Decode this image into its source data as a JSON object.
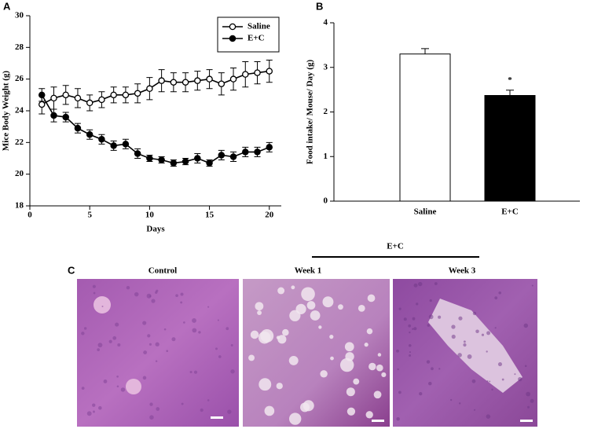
{
  "panel_labels": [
    "A",
    "B",
    "C"
  ],
  "chart_data": [
    {
      "type": "line",
      "x_label": "Days",
      "y_label": "Mice Body Weight (g)",
      "x": [
        1,
        2,
        3,
        4,
        5,
        6,
        7,
        8,
        9,
        10,
        11,
        12,
        13,
        14,
        15,
        16,
        17,
        18,
        19,
        20
      ],
      "xlim": [
        0,
        21
      ],
      "xticks": [
        0,
        5,
        10,
        15,
        20
      ],
      "ylim": [
        18,
        30
      ],
      "yticks": [
        18,
        20,
        22,
        24,
        26,
        28,
        30
      ],
      "legend": "upper right",
      "series": [
        {
          "name": "Saline",
          "color": "#000000",
          "marker_fill": "#ffffff",
          "values": [
            24.4,
            24.8,
            25.0,
            24.8,
            24.5,
            24.7,
            25.0,
            25.0,
            25.1,
            25.4,
            25.9,
            25.8,
            25.8,
            25.9,
            26.0,
            25.7,
            26.0,
            26.3,
            26.4,
            26.5
          ],
          "errors": [
            0.6,
            0.7,
            0.6,
            0.6,
            0.5,
            0.5,
            0.5,
            0.5,
            0.6,
            0.7,
            0.7,
            0.6,
            0.6,
            0.6,
            0.6,
            0.7,
            0.7,
            0.8,
            0.7,
            0.7
          ]
        },
        {
          "name": "E+C",
          "color": "#000000",
          "marker_fill": "#000000",
          "values": [
            25.0,
            23.7,
            23.6,
            22.9,
            22.5,
            22.2,
            21.8,
            21.9,
            21.3,
            21.0,
            20.9,
            20.7,
            20.8,
            21.0,
            20.7,
            21.2,
            21.1,
            21.4,
            21.4,
            21.7
          ],
          "errors": [
            0.4,
            0.4,
            0.3,
            0.3,
            0.3,
            0.3,
            0.3,
            0.3,
            0.3,
            0.2,
            0.2,
            0.2,
            0.2,
            0.3,
            0.2,
            0.3,
            0.3,
            0.3,
            0.3,
            0.3
          ]
        }
      ]
    },
    {
      "type": "bar",
      "y_label": "Food intake/ Mouse/ Day (g)",
      "categories": [
        "Saline",
        "E+C"
      ],
      "values": [
        3.3,
        2.37
      ],
      "errors": [
        0.12,
        0.12
      ],
      "colors": [
        "#ffffff",
        "#000000"
      ],
      "ylim": [
        0,
        4
      ],
      "yticks": [
        0,
        1,
        2,
        3,
        4
      ],
      "annotations": [
        {
          "text": "*",
          "category": "E+C"
        }
      ]
    }
  ],
  "histology": {
    "group_label": "E+C",
    "images": [
      "Control",
      "Week 1",
      "Week 3"
    ]
  }
}
